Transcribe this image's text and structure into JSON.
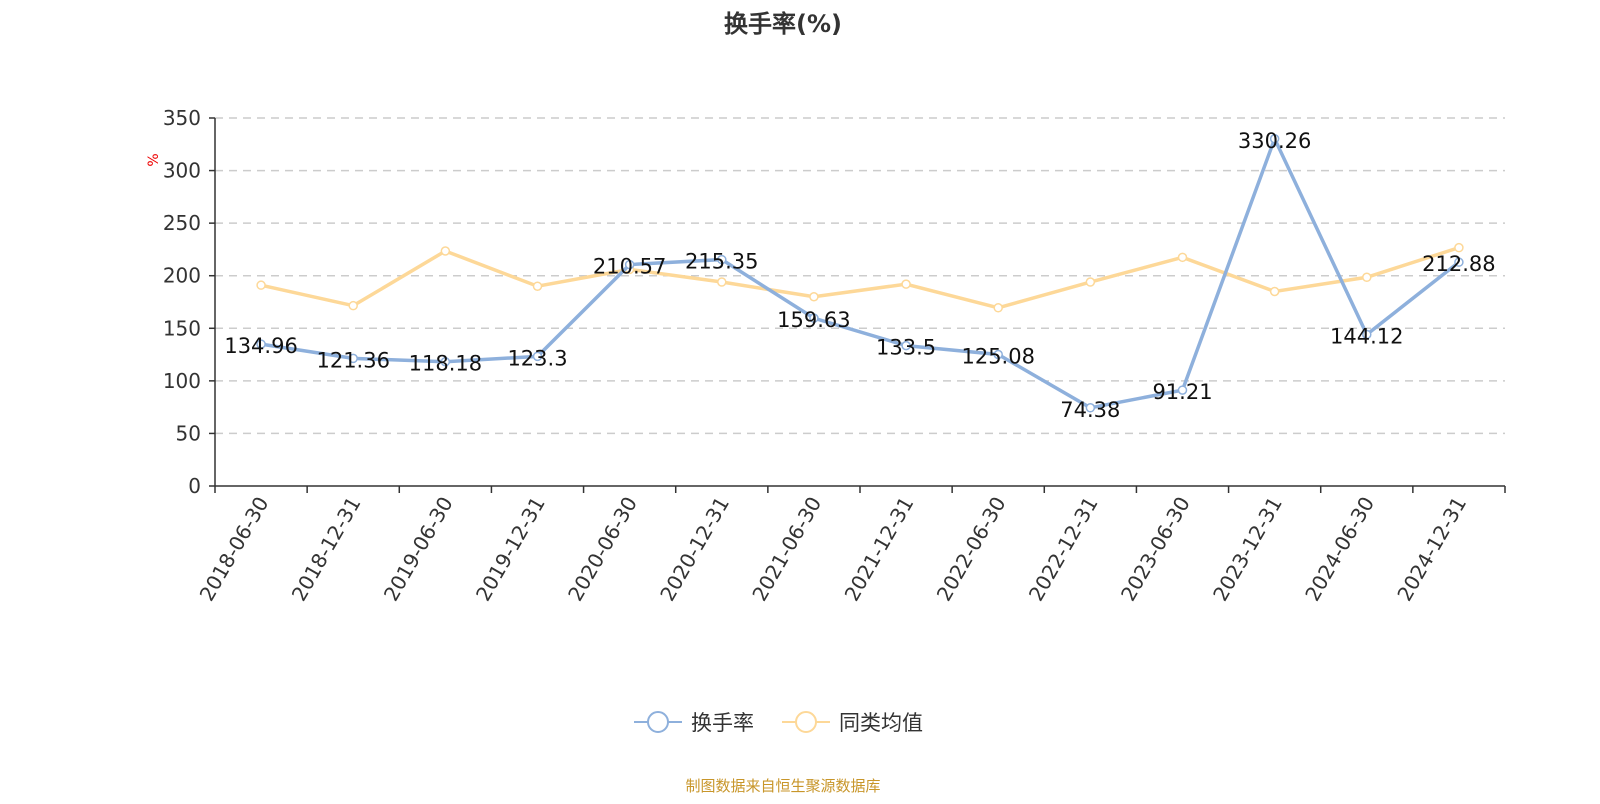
{
  "chart_data": {
    "type": "line",
    "title": "换手率(%)",
    "ylabel": "%",
    "ylim": [
      0,
      350
    ],
    "yticks": [
      0,
      50,
      100,
      150,
      200,
      250,
      300,
      350
    ],
    "grid": true,
    "legend_placement": "bottom",
    "categories": [
      "2018-06-30",
      "2018-12-31",
      "2019-06-30",
      "2019-12-31",
      "2020-06-30",
      "2020-12-31",
      "2021-06-30",
      "2021-12-31",
      "2022-06-30",
      "2022-12-31",
      "2023-06-30",
      "2023-12-31",
      "2024-06-30",
      "2024-12-31"
    ],
    "series": [
      {
        "name": "换手率",
        "color": "#8eb0dc",
        "labels": true,
        "values": [
          134.96,
          121.36,
          118.18,
          123.3,
          210.57,
          215.35,
          159.63,
          133.5,
          125.08,
          74.38,
          91.21,
          330.26,
          144.12,
          212.88
        ]
      },
      {
        "name": "同类均值",
        "color": "#fdd898",
        "labels": false,
        "values": [
          191,
          171.5,
          223.5,
          190,
          206,
          194,
          180,
          192,
          169.5,
          194,
          217.5,
          185,
          198.5,
          226.7
        ]
      }
    ]
  },
  "source": "制图数据来自恒生聚源数据库"
}
